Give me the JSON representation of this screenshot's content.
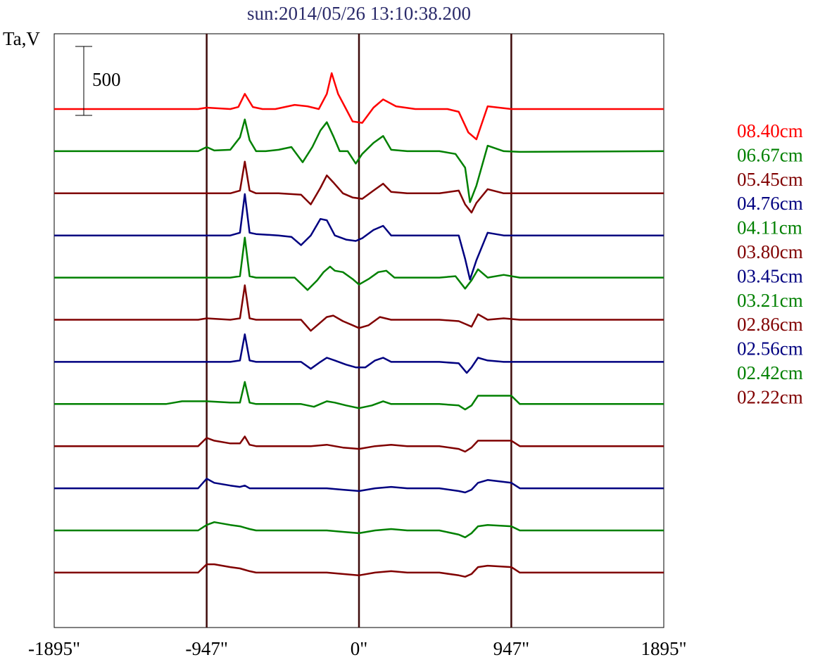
{
  "chart_data": {
    "type": "line",
    "title": "sun:2014/05/26 13:10:38.200",
    "ylabel": "Ta,V",
    "xlabel": "",
    "scale_bar_value": 500,
    "scale_bar_label": "500",
    "x_ticks": [
      -1895,
      -947,
      0,
      947,
      1895
    ],
    "x_tick_labels": [
      "-1895\"",
      "-947\"",
      "0\"",
      "947\"",
      "1895\""
    ],
    "xlim": [
      -1895,
      1895
    ],
    "vertical_markers": [
      -947,
      0,
      947
    ],
    "series": [
      {
        "name": "08.40cm",
        "color": "#ff0000",
        "x": [
          -1895,
          -1000,
          -947,
          -800,
          -750,
          -710,
          -660,
          -600,
          -520,
          -400,
          -320,
          -250,
          -200,
          -170,
          -130,
          -80,
          -40,
          20,
          90,
          150,
          230,
          350,
          480,
          550,
          620,
          680,
          730,
          800,
          947,
          1100,
          1895
        ],
        "y": [
          0,
          0,
          10,
          0,
          15,
          110,
          15,
          0,
          0,
          30,
          20,
          0,
          110,
          260,
          110,
          0,
          -90,
          -100,
          10,
          70,
          20,
          0,
          0,
          0,
          -20,
          -170,
          -220,
          20,
          0,
          0,
          0
        ]
      },
      {
        "name": "06.67cm",
        "color": "#008000",
        "x": [
          -1895,
          -1000,
          -947,
          -900,
          -800,
          -740,
          -710,
          -680,
          -640,
          -580,
          -500,
          -420,
          -350,
          -290,
          -240,
          -200,
          -160,
          -120,
          -70,
          -20,
          20,
          90,
          150,
          200,
          300,
          500,
          600,
          660,
          690,
          730,
          800,
          900,
          1000,
          1895
        ],
        "y": [
          0,
          0,
          30,
          5,
          10,
          100,
          230,
          80,
          0,
          0,
          10,
          30,
          -80,
          30,
          150,
          210,
          110,
          0,
          0,
          -90,
          -20,
          60,
          110,
          10,
          0,
          0,
          -20,
          -120,
          -370,
          -250,
          40,
          0,
          -5,
          0
        ]
      },
      {
        "name": "05.45cm",
        "color": "#800000",
        "x": [
          -1895,
          -1000,
          -947,
          -800,
          -740,
          -710,
          -680,
          -640,
          -500,
          -360,
          -300,
          -240,
          -200,
          -160,
          -100,
          -40,
          20,
          90,
          150,
          200,
          300,
          500,
          620,
          660,
          700,
          730,
          800,
          900,
          1000,
          1895
        ],
        "y": [
          0,
          0,
          0,
          0,
          20,
          230,
          20,
          0,
          0,
          -10,
          -80,
          40,
          130,
          80,
          0,
          -30,
          -40,
          20,
          70,
          10,
          0,
          0,
          20,
          -80,
          -140,
          -70,
          30,
          0,
          0,
          0
        ]
      },
      {
        "name": "04.76cm",
        "color": "#000080",
        "x": [
          -1895,
          -1000,
          -947,
          -800,
          -740,
          -710,
          -680,
          -640,
          -500,
          -420,
          -360,
          -300,
          -240,
          -200,
          -150,
          -80,
          -20,
          20,
          90,
          150,
          200,
          300,
          500,
          620,
          660,
          690,
          730,
          800,
          900,
          1000,
          1895
        ],
        "y": [
          0,
          0,
          0,
          0,
          20,
          300,
          20,
          10,
          0,
          -10,
          -70,
          0,
          120,
          110,
          0,
          -30,
          -40,
          -20,
          40,
          70,
          0,
          0,
          0,
          0,
          -170,
          -320,
          -180,
          20,
          0,
          0,
          0
        ]
      },
      {
        "name": "04.11cm",
        "color": "#008000",
        "x": [
          -1895,
          -1000,
          -947,
          -800,
          -740,
          -710,
          -680,
          -640,
          -500,
          -400,
          -320,
          -260,
          -220,
          -180,
          -150,
          -100,
          -40,
          0,
          60,
          120,
          170,
          220,
          300,
          500,
          600,
          660,
          700,
          740,
          800,
          900,
          1000,
          1895
        ],
        "y": [
          0,
          0,
          0,
          0,
          10,
          290,
          10,
          0,
          0,
          0,
          -90,
          -20,
          40,
          80,
          50,
          40,
          -10,
          -50,
          -10,
          40,
          50,
          0,
          0,
          0,
          10,
          -80,
          -20,
          60,
          0,
          20,
          0,
          0
        ]
      },
      {
        "name": "03.80cm",
        "color": "#800000",
        "x": [
          -1895,
          -1000,
          -947,
          -800,
          -740,
          -710,
          -680,
          -640,
          -500,
          -360,
          -300,
          -250,
          -200,
          -160,
          -100,
          -40,
          0,
          60,
          130,
          200,
          300,
          500,
          620,
          660,
          700,
          740,
          800,
          900,
          1000,
          1895
        ],
        "y": [
          0,
          0,
          10,
          0,
          10,
          250,
          10,
          0,
          0,
          0,
          -80,
          -30,
          20,
          30,
          -10,
          -40,
          -60,
          -40,
          20,
          0,
          0,
          0,
          -10,
          -30,
          -50,
          40,
          0,
          10,
          0,
          0
        ]
      },
      {
        "name": "03.45cm",
        "color": "#000080",
        "x": [
          -1895,
          -1000,
          -947,
          -800,
          -740,
          -710,
          -680,
          -640,
          -500,
          -360,
          -300,
          -240,
          -200,
          -150,
          -80,
          -20,
          40,
          100,
          150,
          200,
          300,
          500,
          620,
          670,
          700,
          740,
          800,
          900,
          1000,
          1895
        ],
        "y": [
          0,
          0,
          0,
          0,
          10,
          200,
          10,
          0,
          0,
          0,
          -50,
          0,
          30,
          10,
          -20,
          -40,
          -40,
          10,
          30,
          0,
          0,
          0,
          -10,
          -80,
          -40,
          30,
          10,
          0,
          0,
          0
        ]
      },
      {
        "name": "03.21cm",
        "color": "#008000",
        "x": [
          -1895,
          -1200,
          -1100,
          -947,
          -800,
          -740,
          -710,
          -680,
          -640,
          -500,
          -360,
          -280,
          -200,
          -150,
          -80,
          0,
          80,
          150,
          200,
          300,
          500,
          620,
          660,
          700,
          740,
          800,
          947,
          1000,
          1895
        ],
        "y": [
          0,
          0,
          20,
          20,
          10,
          10,
          160,
          10,
          0,
          0,
          0,
          -20,
          20,
          10,
          -10,
          -30,
          -10,
          20,
          0,
          0,
          0,
          -10,
          -40,
          -10,
          60,
          60,
          60,
          0,
          0
        ]
      },
      {
        "name": "02.86cm",
        "color": "#800000",
        "x": [
          -1895,
          -1000,
          -947,
          -900,
          -800,
          -740,
          -710,
          -680,
          -640,
          -500,
          -300,
          -200,
          -100,
          0,
          100,
          200,
          300,
          500,
          620,
          660,
          700,
          740,
          800,
          947,
          1000,
          1895
        ],
        "y": [
          0,
          0,
          60,
          40,
          20,
          20,
          70,
          10,
          0,
          0,
          0,
          10,
          -10,
          -20,
          0,
          10,
          0,
          0,
          -20,
          -40,
          -10,
          40,
          40,
          40,
          0,
          0
        ]
      },
      {
        "name": "02.56cm",
        "color": "#000080",
        "x": [
          -1895,
          -1000,
          -947,
          -900,
          -800,
          -740,
          -710,
          -680,
          -640,
          -500,
          -300,
          -200,
          -100,
          0,
          100,
          200,
          300,
          500,
          620,
          660,
          700,
          740,
          800,
          947,
          1000,
          1895
        ],
        "y": [
          0,
          0,
          70,
          40,
          20,
          10,
          20,
          0,
          0,
          0,
          0,
          0,
          -10,
          -20,
          0,
          10,
          0,
          0,
          -20,
          -30,
          -10,
          40,
          60,
          40,
          0,
          0
        ]
      },
      {
        "name": "02.42cm",
        "color": "#008000",
        "x": [
          -1895,
          -1000,
          -947,
          -900,
          -800,
          -740,
          -710,
          -680,
          -640,
          -500,
          -300,
          -200,
          -100,
          0,
          100,
          200,
          300,
          500,
          620,
          660,
          700,
          740,
          800,
          947,
          1000,
          1895
        ],
        "y": [
          0,
          0,
          40,
          60,
          40,
          30,
          20,
          10,
          0,
          0,
          0,
          0,
          -10,
          -20,
          0,
          10,
          0,
          0,
          -30,
          -50,
          -20,
          30,
          40,
          30,
          0,
          0
        ]
      },
      {
        "name": "02.22cm",
        "color": "#800000",
        "x": [
          -1895,
          -1000,
          -947,
          -900,
          -800,
          -740,
          -710,
          -680,
          -640,
          -500,
          -300,
          -200,
          -100,
          0,
          100,
          200,
          300,
          500,
          620,
          660,
          700,
          740,
          800,
          947,
          1000,
          1895
        ],
        "y": [
          0,
          0,
          60,
          60,
          40,
          30,
          20,
          10,
          0,
          0,
          0,
          0,
          -10,
          -20,
          0,
          10,
          0,
          0,
          -20,
          -30,
          -10,
          40,
          50,
          40,
          0,
          0
        ]
      }
    ]
  }
}
